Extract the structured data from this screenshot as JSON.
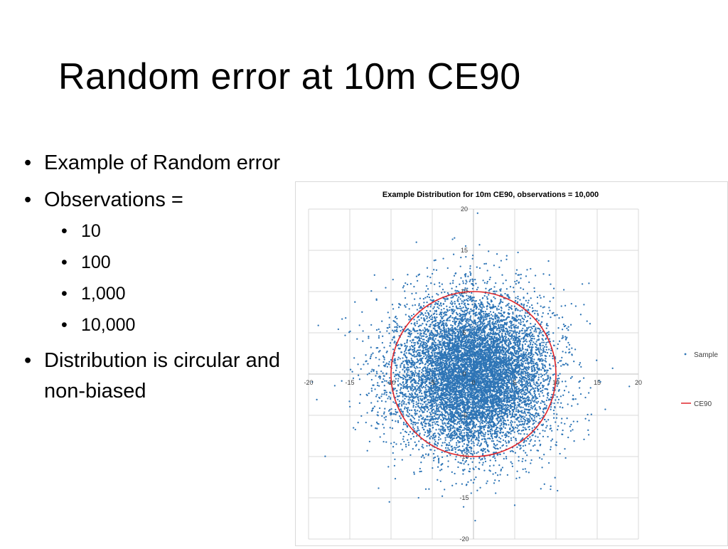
{
  "slide": {
    "title": "Random error at 10m CE90",
    "bullets": [
      {
        "text": "Example of Random error"
      },
      {
        "text": "Observations =",
        "sub": [
          "10",
          "100",
          "1,000",
          "10,000"
        ]
      },
      {
        "text": "Distribution is circular and non-biased"
      }
    ]
  },
  "chart_data": {
    "type": "scatter",
    "title": "Example Distribution for 10m CE90, observations = 10,000",
    "xlim": [
      -20,
      20
    ],
    "ylim": [
      -20,
      20
    ],
    "x_ticks": [
      -20,
      -15,
      -10,
      -5,
      0,
      5,
      10,
      15,
      20
    ],
    "y_ticks": [
      20,
      15,
      10,
      5,
      0,
      -5,
      -10,
      -15,
      -20
    ],
    "grid": true,
    "legend_position": "right",
    "series": [
      {
        "name": "Sample",
        "kind": "points",
        "color": "#2e75b6",
        "n": 10000,
        "distribution": "circular normal, centered at 0,0, 90% within radius 10"
      },
      {
        "name": "CE90",
        "kind": "circle",
        "color": "#e0262a",
        "center": [
          0,
          0
        ],
        "radius": 10
      }
    ],
    "sample_points": [
      [
        0.5,
        19.5
      ],
      [
        -2.3,
        16.5
      ],
      [
        -15.5,
        6.8
      ],
      [
        -19.0,
        -3.1
      ],
      [
        -10.2,
        -15.5
      ],
      [
        18.9,
        -1.5
      ],
      [
        -12.0,
        12.0
      ],
      [
        9.1,
        13.7
      ],
      [
        13.9,
        -6.8
      ],
      [
        14.0,
        11.0
      ],
      [
        -1.2,
        -16.1
      ],
      [
        5.0,
        -15.9
      ],
      [
        -6.8,
        11.3
      ],
      [
        8.3,
        -10.3
      ],
      [
        -11.7,
        -6.6
      ],
      [
        11.5,
        3.8
      ],
      [
        3.9,
        9.2
      ],
      [
        -4.4,
        -8.7
      ],
      [
        -7.7,
        3.3
      ],
      [
        10.5,
        -4.0
      ]
    ]
  },
  "colors": {
    "sample": "#2e75b6",
    "ce90": "#e0262a",
    "grid": "#d9d9d9"
  }
}
